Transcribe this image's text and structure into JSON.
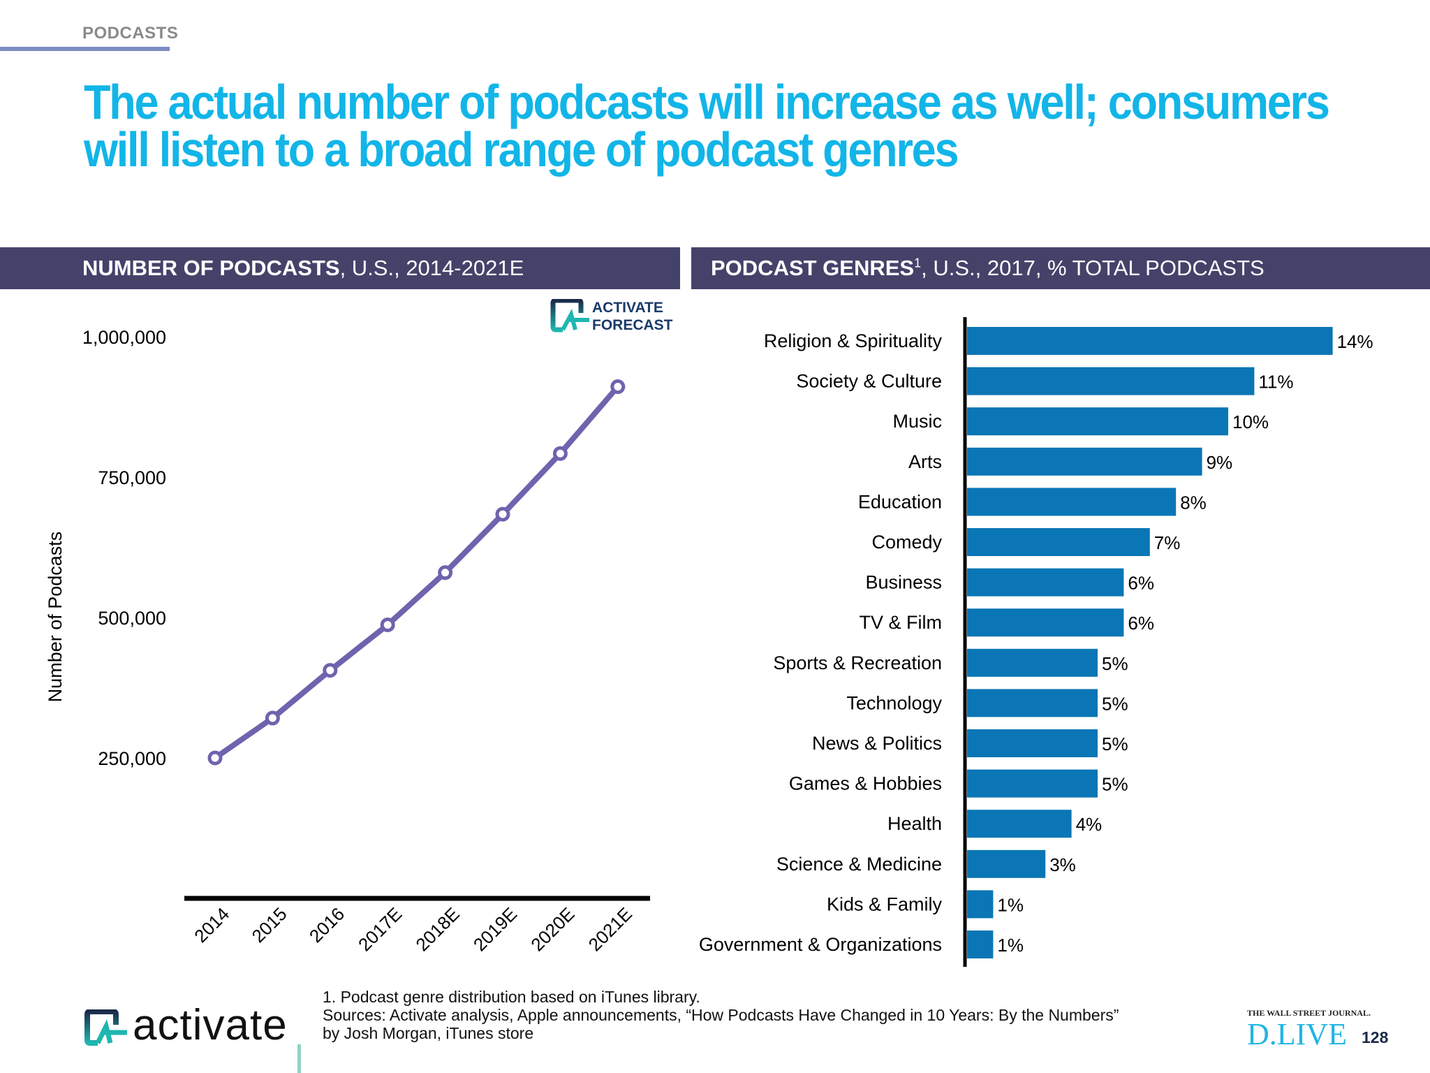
{
  "section_label": "PODCASTS",
  "title": "The actual number of podcasts will increase as well; consumers will listen to a broad range of podcast genres",
  "left_panel": {
    "header_bold": "NUMBER OF PODCASTS",
    "header_rest": ", U.S., 2014-2021E",
    "badge_line1": "ACTIVATE",
    "badge_line2": "FORECAST"
  },
  "right_panel": {
    "header_bold": "PODCAST GENRES",
    "header_sup": "1",
    "header_rest": ", U.S., 2017, % TOTAL PODCASTS"
  },
  "chart_data": [
    {
      "type": "line",
      "ylabel": "Number of Podcasts",
      "y_ticks": [
        "1,000,000",
        "750,000",
        "500,000",
        "250,000"
      ],
      "y_tick_values": [
        1000000,
        750000,
        500000,
        250000
      ],
      "categories": [
        "2014",
        "2015",
        "2016",
        "2017E",
        "2018E",
        "2019E",
        "2020E",
        "2021E"
      ],
      "values": [
        250000,
        321000,
        406000,
        487000,
        580000,
        684000,
        792000,
        911000
      ],
      "color": "#6f63ae",
      "grid": false
    },
    {
      "type": "bar",
      "orientation": "horizontal",
      "categories": [
        "Religion & Spirituality",
        "Society & Culture",
        "Music",
        "Arts",
        "Education",
        "Comedy",
        "Business",
        "TV & Film",
        "Sports & Recreation",
        "Technology",
        "News & Politics",
        "Games & Hobbies",
        "Health",
        "Science & Medicine",
        "Kids & Family",
        "Government & Organizations"
      ],
      "values": [
        14,
        11,
        10,
        9,
        8,
        7,
        6,
        6,
        5,
        5,
        5,
        5,
        4,
        3,
        1,
        1
      ],
      "labels": [
        "14%",
        "11%",
        "10%",
        "9%",
        "8%",
        "7%",
        "6%",
        "6%",
        "5%",
        "5%",
        "5%",
        "5%",
        "4%",
        "3%",
        "1%",
        "1%"
      ],
      "color": "#0a76b5",
      "grid": false
    }
  ],
  "footnotes": {
    "note": "1. Podcast genre distribution based on iTunes library.",
    "sources_1": "Sources: Activate analysis, Apple announcements, “How Podcasts Have Changed in 10 Years: By the Numbers”",
    "sources_2": "by Josh Morgan, iTunes store"
  },
  "footer": {
    "brand": "activate",
    "wsj": "THE WALL STREET JOURNAL.",
    "dlive": "D.LIVE",
    "page": "128"
  }
}
